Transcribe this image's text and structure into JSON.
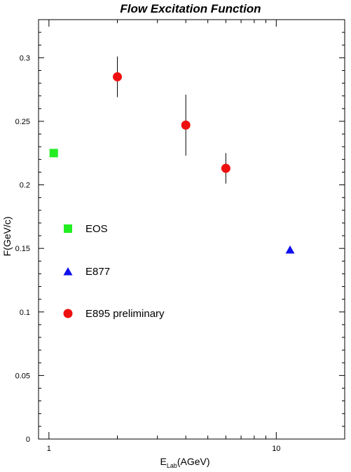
{
  "chart_data": {
    "type": "scatter",
    "title": "Flow Excitation Function",
    "xlabel": {
      "main": "E",
      "sub": "Lab",
      "rest": "(AGeV)"
    },
    "ylabel": "F(GeV/c)",
    "x_scale": "log",
    "xlim": [
      0.9,
      20
    ],
    "ylim": [
      0,
      0.33
    ],
    "x_ticks": [
      {
        "value": 1,
        "label": "1"
      },
      {
        "value": 10,
        "label": "10"
      }
    ],
    "y_ticks": [
      {
        "value": 0,
        "label": "0"
      },
      {
        "value": 0.05,
        "label": "0.05"
      },
      {
        "value": 0.1,
        "label": "0.1"
      },
      {
        "value": 0.15,
        "label": "0.15"
      },
      {
        "value": 0.2,
        "label": "0.2"
      },
      {
        "value": 0.25,
        "label": "0.25"
      },
      {
        "value": 0.3,
        "label": "0.3"
      }
    ],
    "grid": false,
    "legend_position": "left-middle",
    "series": [
      {
        "name": "EOS",
        "marker": "square",
        "color": "#22ee22",
        "points": [
          {
            "x": 1.05,
            "y": 0.225
          }
        ]
      },
      {
        "name": "E877",
        "marker": "triangle",
        "color": "#1010ee",
        "points": [
          {
            "x": 11.5,
            "y": 0.149
          }
        ]
      },
      {
        "name": "E895 preliminary",
        "marker": "circle",
        "color": "#ee1010",
        "points": [
          {
            "x": 2.0,
            "y": 0.285,
            "err_low": 0.016,
            "err_high": 0.016
          },
          {
            "x": 4.0,
            "y": 0.247,
            "err_low": 0.024,
            "err_high": 0.024
          },
          {
            "x": 6.0,
            "y": 0.213,
            "err_low": 0.012,
            "err_high": 0.012
          }
        ]
      }
    ]
  }
}
